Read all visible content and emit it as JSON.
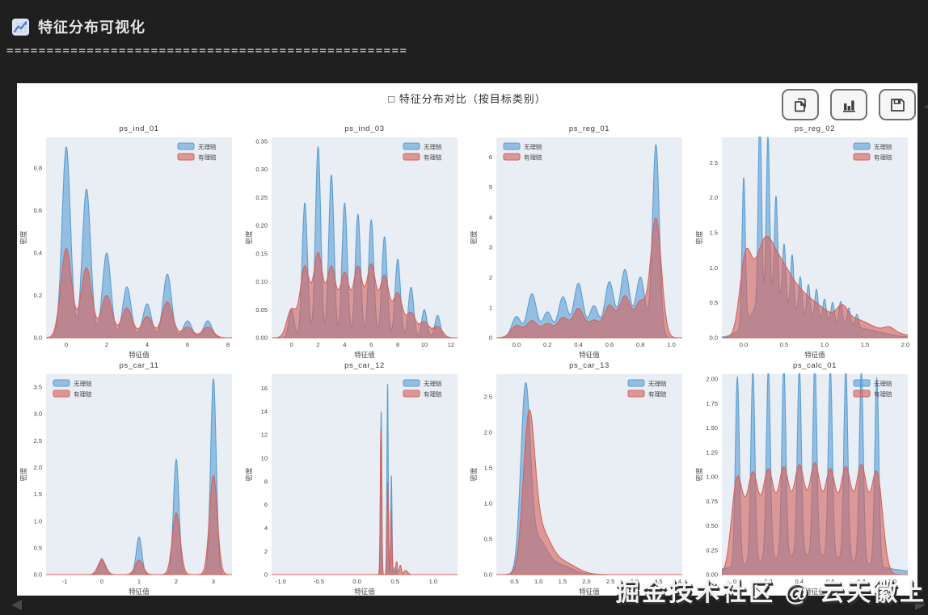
{
  "header": {
    "title": "特征分布可视化",
    "separator": "=================================================="
  },
  "figure": {
    "title": "□ 特征分布对比（按目标类别）"
  },
  "toolbar": {
    "buttons": [
      {
        "icon": "copy-icon"
      },
      {
        "icon": "bar-chart-icon"
      },
      {
        "icon": "save-icon"
      }
    ]
  },
  "watermark": {
    "text": "掘金技术社区 @ 云天徽上"
  },
  "nav": {
    "prev": "◀",
    "next": "▶"
  },
  "colors": {
    "page_bg": "#1f1f1f",
    "panel_bg": "#ffffff",
    "axes_bg": "#e9edf4",
    "blue": "#5b9fd4",
    "blue_fill": "rgba(91,159,212,0.60)",
    "red": "#d4645c",
    "red_fill": "rgba(212,100,92,0.62)",
    "tick_text": "#444444",
    "title_text": "#3a3a3a"
  },
  "chart_data": [
    {
      "type": "area",
      "title": "ps_ind_01",
      "xlabel": "特征值",
      "ylabel": "密度",
      "xlim": [
        -1.0,
        8.2
      ],
      "ylim": [
        0,
        0.945
      ],
      "xticks": {
        "values": [
          0,
          2,
          4,
          6,
          8
        ],
        "labels": [
          "0",
          "2",
          "4",
          "6",
          "8"
        ]
      },
      "yticks": {
        "values": [
          0,
          0.2,
          0.4,
          0.6,
          0.8
        ],
        "labels": [
          "0.0",
          "0.2",
          "0.4",
          "0.6",
          "0.8"
        ]
      },
      "legend": {
        "position": "ne",
        "entries": [
          "无理赔",
          "有理赔"
        ]
      },
      "series": [
        {
          "name": "无理赔",
          "color": "blue",
          "sigma": 0.21,
          "peaks": [
            [
              0,
              0.9
            ],
            [
              1,
              0.7
            ],
            [
              2,
              0.4
            ],
            [
              3,
              0.24
            ],
            [
              4,
              0.16
            ],
            [
              5,
              0.3
            ],
            [
              6,
              0.08
            ],
            [
              7,
              0.08
            ]
          ]
        },
        {
          "name": "有理赔",
          "color": "red",
          "sigma": 0.27,
          "peaks": [
            [
              0,
              0.42
            ],
            [
              1,
              0.33
            ],
            [
              2,
              0.2
            ],
            [
              3,
              0.14
            ],
            [
              4,
              0.1
            ],
            [
              5,
              0.17
            ],
            [
              6,
              0.05
            ],
            [
              7,
              0.05
            ]
          ]
        }
      ]
    },
    {
      "type": "area",
      "title": "ps_ind_03",
      "xlabel": "特征值",
      "ylabel": "密度",
      "xlim": [
        -1.5,
        12.5
      ],
      "ylim": [
        0,
        0.357
      ],
      "xticks": {
        "values": [
          0,
          2,
          4,
          6,
          8,
          10,
          12
        ],
        "labels": [
          "0",
          "2",
          "4",
          "6",
          "8",
          "10",
          "12"
        ]
      },
      "yticks": {
        "values": [
          0,
          0.05,
          0.1,
          0.15,
          0.2,
          0.25,
          0.3,
          0.35
        ],
        "labels": [
          "0.00",
          "0.05",
          "0.10",
          "0.15",
          "0.20",
          "0.25",
          "0.30",
          "0.35"
        ]
      },
      "legend": {
        "position": "ne",
        "entries": [
          "无理赔",
          "有理赔"
        ]
      },
      "series": [
        {
          "name": "无理赔",
          "color": "blue",
          "sigma": 0.2,
          "peaks": [
            [
              0,
              0.05
            ],
            [
              1,
              0.24
            ],
            [
              2,
              0.34
            ],
            [
              3,
              0.29
            ],
            [
              4,
              0.24
            ],
            [
              5,
              0.22
            ],
            [
              6,
              0.21
            ],
            [
              7,
              0.18
            ],
            [
              8,
              0.14
            ],
            [
              9,
              0.09
            ],
            [
              10,
              0.05
            ],
            [
              11,
              0.04
            ]
          ]
        },
        {
          "name": "有理赔",
          "color": "red",
          "sigma": 0.35,
          "peaks": [
            [
              0,
              0.05
            ],
            [
              1,
              0.125
            ],
            [
              2,
              0.148
            ],
            [
              3,
              0.124
            ],
            [
              4,
              0.113
            ],
            [
              5,
              0.124
            ],
            [
              6,
              0.128
            ],
            [
              7,
              0.108
            ],
            [
              8,
              0.078
            ],
            [
              9,
              0.044
            ],
            [
              10,
              0.028
            ],
            [
              11,
              0.02
            ]
          ]
        }
      ]
    },
    {
      "type": "area",
      "title": "ps_reg_01",
      "xlabel": "特征值",
      "ylabel": "密度",
      "xlim": [
        -0.13,
        1.07
      ],
      "ylim": [
        0,
        6.65
      ],
      "xticks": {
        "values": [
          0,
          0.2,
          0.4,
          0.6,
          0.8,
          1.0
        ],
        "labels": [
          "0.0",
          "0.2",
          "0.4",
          "0.6",
          "0.8",
          "1.0"
        ]
      },
      "yticks": {
        "values": [
          0,
          1,
          2,
          3,
          4,
          5,
          6
        ],
        "labels": [
          "0",
          "1",
          "2",
          "3",
          "4",
          "5",
          "6"
        ]
      },
      "legend": {
        "position": "nw",
        "entries": [
          "无理赔",
          "有理赔"
        ]
      },
      "series": [
        {
          "name": "无理赔",
          "color": "blue",
          "sigma": 0.03,
          "peaks": [
            [
              0,
              0.7
            ],
            [
              0.1,
              1.45
            ],
            [
              0.2,
              0.85
            ],
            [
              0.3,
              1.35
            ],
            [
              0.4,
              1.8
            ],
            [
              0.5,
              1.05
            ],
            [
              0.6,
              1.85
            ],
            [
              0.7,
              2.25
            ],
            [
              0.8,
              2.0
            ],
            [
              0.9,
              6.4,
              0.022
            ]
          ]
        },
        {
          "name": "有理赔",
          "color": "red",
          "sigma": 0.036,
          "peaks": [
            [
              0,
              0.4
            ],
            [
              0.1,
              0.55
            ],
            [
              0.2,
              0.45
            ],
            [
              0.3,
              0.65
            ],
            [
              0.4,
              0.95
            ],
            [
              0.5,
              0.55
            ],
            [
              0.6,
              1.05
            ],
            [
              0.7,
              1.35
            ],
            [
              0.8,
              1.15
            ],
            [
              0.9,
              3.95,
              0.035
            ]
          ]
        }
      ]
    },
    {
      "type": "area",
      "title": "ps_reg_02",
      "xlabel": "特征值",
      "ylabel": "密度",
      "xlim": [
        -0.27,
        2.03
      ],
      "ylim": [
        0,
        2.86
      ],
      "xticks": {
        "values": [
          0,
          0.5,
          1.0,
          1.5,
          2.0
        ],
        "labels": [
          "0.0",
          "0.5",
          "1.0",
          "1.5",
          "2.0"
        ]
      },
      "yticks": {
        "values": [
          0,
          0.5,
          1.0,
          1.5,
          2.0,
          2.5
        ],
        "labels": [
          "0.0",
          "0.5",
          "1.0",
          "1.5",
          "2.0",
          "2.5"
        ]
      },
      "legend": {
        "position": "ne",
        "entries": [
          "无理赔",
          "有理赔"
        ]
      },
      "series": [
        {
          "name": "无理赔",
          "color": "blue",
          "sigma": 0.02,
          "peaks": [
            [
              0,
              2.1
            ],
            [
              0.2,
              2.72
            ],
            [
              0.3,
              2.25
            ],
            [
              0.4,
              1.43
            ],
            [
              0.5,
              0.85
            ],
            [
              0.6,
              0.8
            ],
            [
              0.7,
              0.55
            ],
            [
              0.8,
              0.47
            ],
            [
              0.9,
              0.42
            ],
            [
              1.0,
              0.3
            ],
            [
              1.1,
              0.28
            ],
            [
              1.2,
              0.32
            ],
            [
              1.3,
              0.25
            ],
            [
              1.4,
              0.18
            ],
            [
              0.3,
              0.55,
              0.2
            ],
            [
              0.8,
              0.25,
              0.3
            ],
            [
              1.4,
              0.12,
              0.3
            ]
          ]
        },
        {
          "name": "有理赔",
          "color": "red",
          "sigma": 0.1,
          "peaks": [
            [
              0.02,
              0.95,
              0.07
            ],
            [
              0.27,
              1.4,
              0.14
            ],
            [
              0.5,
              0.55
            ],
            [
              0.65,
              0.45
            ],
            [
              0.8,
              0.35
            ],
            [
              0.95,
              0.27
            ],
            [
              1.1,
              0.2
            ],
            [
              1.22,
              0.28,
              0.07
            ],
            [
              1.35,
              0.2
            ],
            [
              1.5,
              0.13
            ],
            [
              1.65,
              0.09
            ],
            [
              1.8,
              0.11,
              0.07
            ],
            [
              1.95,
              0.05
            ]
          ]
        }
      ]
    },
    {
      "type": "area",
      "title": "ps_car_11",
      "xlabel": "特征值",
      "ylabel": "密度",
      "xlim": [
        -1.5,
        3.5
      ],
      "ylim": [
        0,
        3.74
      ],
      "xticks": {
        "values": [
          -1,
          0,
          1,
          2,
          3
        ],
        "labels": [
          "-1",
          "0",
          "1",
          "2",
          "3"
        ]
      },
      "yticks": {
        "values": [
          0,
          0.5,
          1.0,
          1.5,
          2.0,
          2.5,
          3.0,
          3.5
        ],
        "labels": [
          "0.0",
          "0.5",
          "1.0",
          "1.5",
          "2.0",
          "2.5",
          "3.0",
          "3.5"
        ]
      },
      "legend": {
        "position": "nw",
        "entries": [
          "无理赔",
          "有理赔"
        ]
      },
      "series": [
        {
          "name": "无理赔",
          "color": "blue",
          "sigma": 0.075,
          "peaks": [
            [
              0,
              0.3
            ],
            [
              1,
              0.7
            ],
            [
              2,
              2.15
            ],
            [
              3,
              3.65
            ]
          ]
        },
        {
          "name": "有理赔",
          "color": "red",
          "sigma": 0.105,
          "peaks": [
            [
              0,
              0.27
            ],
            [
              1,
              0.27
            ],
            [
              2,
              1.15
            ],
            [
              3,
              1.85
            ]
          ]
        }
      ]
    },
    {
      "type": "area",
      "title": "ps_car_12",
      "xlabel": "特征值",
      "ylabel": "密度",
      "xlim": [
        -1.12,
        1.32
      ],
      "ylim": [
        0,
        17.2
      ],
      "xticks": {
        "values": [
          -1,
          -0.5,
          0,
          0.5,
          1
        ],
        "labels": [
          "-1.0",
          "-0.5",
          "0.0",
          "0.5",
          "1.0"
        ]
      },
      "yticks": {
        "values": [
          0,
          2,
          4,
          6,
          8,
          10,
          12,
          14,
          16
        ],
        "labels": [
          "0",
          "2",
          "4",
          "6",
          "8",
          "10",
          "12",
          "14",
          "16"
        ]
      },
      "legend": {
        "position": "ne",
        "entries": [
          "无理赔",
          "有理赔"
        ]
      },
      "series": [
        {
          "name": "无理赔",
          "color": "blue",
          "sigma": 0.0085,
          "peaks": [
            [
              0.318,
              14.0
            ],
            [
              0.402,
              16.4
            ],
            [
              0.452,
              8.5
            ],
            [
              0.5,
              0.6,
              0.015
            ]
          ]
        },
        {
          "name": "有理赔",
          "color": "red",
          "sigma": 0.009,
          "peaks": [
            [
              0.315,
              12.5
            ],
            [
              0.405,
              7.9
            ],
            [
              0.45,
              5.6
            ],
            [
              0.52,
              1.1,
              0.012
            ],
            [
              0.57,
              0.8,
              0.012
            ],
            [
              0.64,
              0.35,
              0.025
            ]
          ]
        }
      ]
    },
    {
      "type": "area",
      "title": "ps_car_13",
      "xlabel": "特征值",
      "ylabel": "密度",
      "xlim": [
        0.12,
        4.0
      ],
      "ylim": [
        0,
        2.82
      ],
      "xticks": {
        "values": [
          0.5,
          1.0,
          1.5,
          2.0,
          2.5,
          3.0,
          3.5,
          4.0
        ],
        "labels": [
          "0.5",
          "1.0",
          "1.5",
          "2.0",
          "2.5",
          "3.0",
          "3.5",
          "4.0"
        ]
      },
      "yticks": {
        "values": [
          0,
          0.5,
          1.0,
          1.5,
          2.0,
          2.5
        ],
        "labels": [
          "0.0",
          "0.5",
          "1.0",
          "1.5",
          "2.0",
          "2.5"
        ]
      },
      "legend": {
        "position": "ne",
        "entries": [
          "无理赔",
          "有理赔"
        ]
      },
      "series": [
        {
          "name": "无理赔",
          "color": "blue",
          "sigma": 0.1,
          "peaks": [
            [
              0.73,
              2.55,
              0.1
            ],
            [
              1.0,
              0.45,
              0.18
            ],
            [
              1.45,
              0.13,
              0.25
            ]
          ]
        },
        {
          "name": "有理赔",
          "color": "red",
          "sigma": 0.12,
          "peaks": [
            [
              0.8,
              2.05,
              0.12
            ],
            [
              1.05,
              0.55,
              0.2
            ],
            [
              1.5,
              0.17,
              0.28
            ]
          ]
        }
      ]
    },
    {
      "type": "area",
      "title": "ps_calc_01",
      "xlabel": "特征值",
      "ylabel": "密度",
      "xlim": [
        -0.1,
        1.1
      ],
      "ylim": [
        0,
        2.05
      ],
      "xticks": {
        "values": [
          0,
          0.2,
          0.4,
          0.6,
          0.8,
          1.0
        ],
        "labels": [
          "0.0",
          "0.2",
          "0.4",
          "0.6",
          "0.8",
          "1.0"
        ]
      },
      "yticks": {
        "values": [
          0,
          0.25,
          0.5,
          0.75,
          1.0,
          1.25,
          1.5,
          1.75,
          2.0
        ],
        "labels": [
          "0.00",
          "0.25",
          "0.50",
          "0.75",
          "1.00",
          "1.25",
          "1.50",
          "1.75",
          "2.00"
        ]
      },
      "legend": {
        "position": "ne",
        "entries": [
          "无理赔",
          "有理赔"
        ]
      },
      "series": [
        {
          "name": "无理赔",
          "color": "blue",
          "sigma": 0.013,
          "peaks": [
            [
              0,
              1.93
            ],
            [
              0.1,
              1.96
            ],
            [
              0.2,
              1.93
            ],
            [
              0.3,
              1.95
            ],
            [
              0.4,
              1.92
            ],
            [
              0.5,
              1.96
            ],
            [
              0.6,
              1.93
            ],
            [
              0.7,
              1.94
            ],
            [
              0.8,
              1.95
            ],
            [
              0.9,
              1.92
            ],
            [
              0.45,
              0.2,
              0.35
            ]
          ]
        },
        {
          "name": "有理赔",
          "color": "red",
          "sigma": 0.037,
          "peaks": [
            [
              0,
              0.98
            ],
            [
              0.1,
              1.0
            ],
            [
              0.2,
              1.03
            ],
            [
              0.3,
              1.05
            ],
            [
              0.4,
              1.07
            ],
            [
              0.5,
              1.09
            ],
            [
              0.6,
              1.03
            ],
            [
              0.7,
              1.05
            ],
            [
              0.8,
              1.07
            ],
            [
              0.9,
              1.03
            ]
          ]
        }
      ]
    }
  ]
}
